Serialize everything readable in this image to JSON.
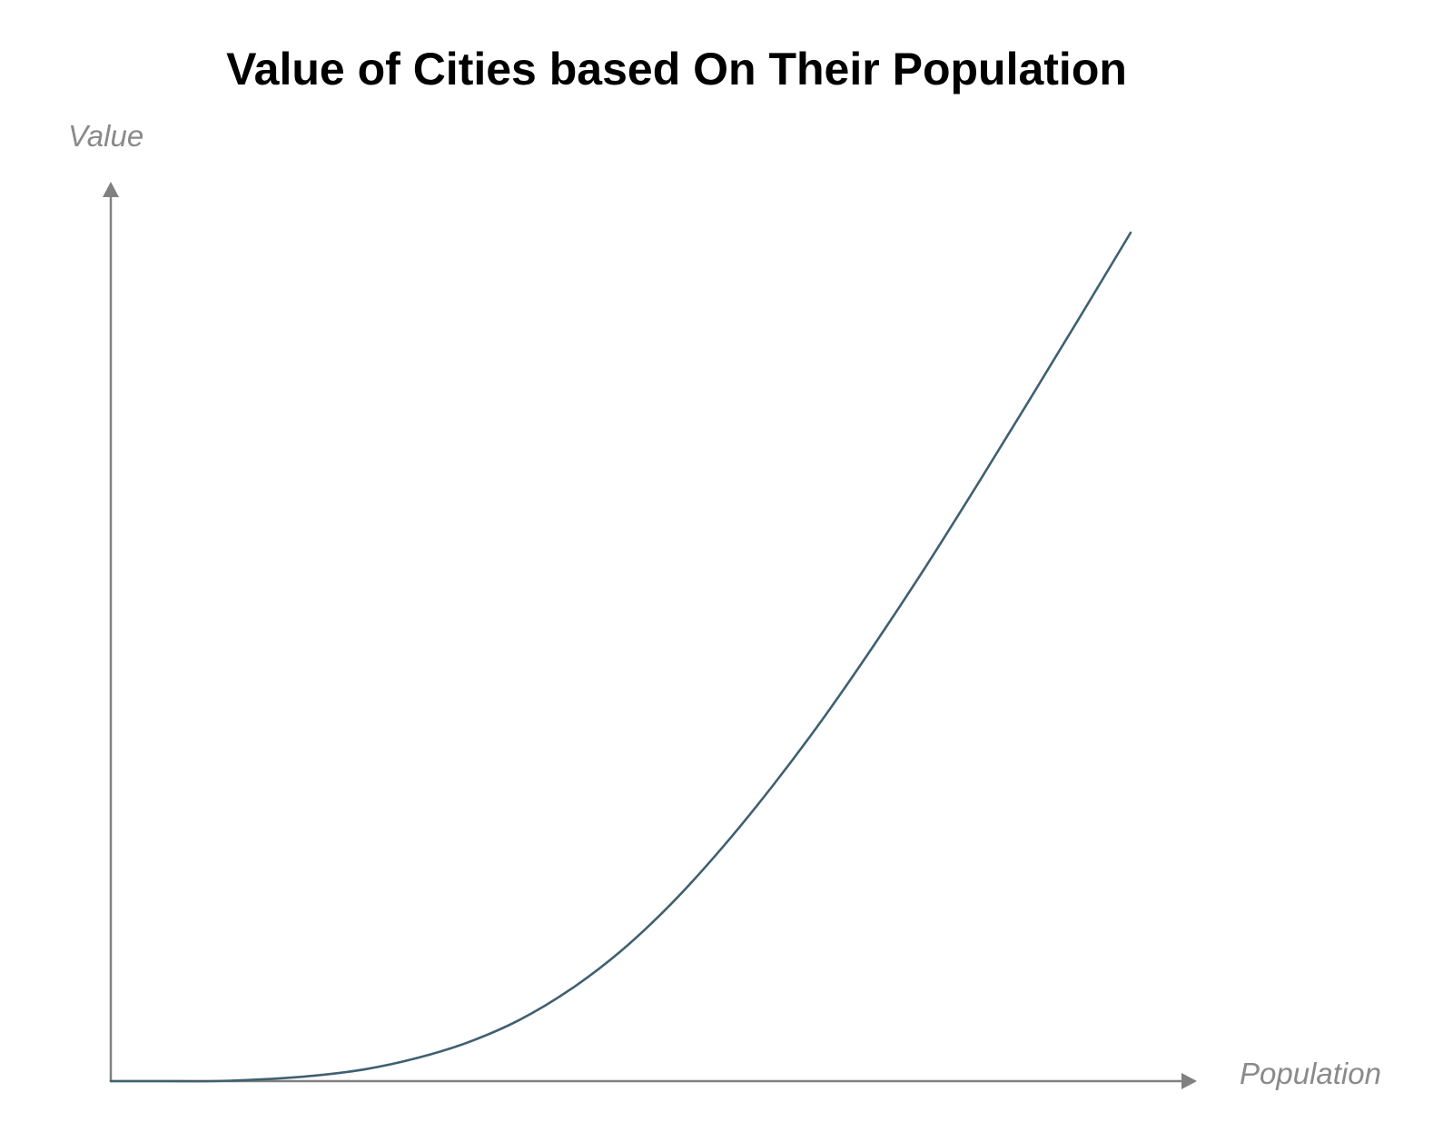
{
  "chart_data": {
    "type": "line",
    "title": "Value of Cities based On Their Population",
    "xlabel": "Population",
    "ylabel": "Value",
    "grid": false,
    "legend": "none",
    "ticks": false,
    "xlim": [
      0,
      1
    ],
    "ylim": [
      0,
      1
    ],
    "series": [
      {
        "x": [
          0.0,
          0.05,
          0.1,
          0.15,
          0.2,
          0.25,
          0.3,
          0.35,
          0.4,
          0.45,
          0.5,
          0.55,
          0.6,
          0.65,
          0.7,
          0.75,
          0.8,
          0.85,
          0.9,
          0.95,
          1.0
        ],
        "values": [
          0.0,
          0.0,
          0.0,
          0.002,
          0.006,
          0.013,
          0.025,
          0.042,
          0.066,
          0.099,
          0.141,
          0.193,
          0.254,
          0.322,
          0.396,
          0.476,
          0.56,
          0.648,
          0.738,
          0.829,
          0.921
        ]
      }
    ]
  },
  "colors": {
    "axis": "#808080",
    "axis_label": "#8a8a8a",
    "line": "#3f6070",
    "title": "#000000"
  }
}
